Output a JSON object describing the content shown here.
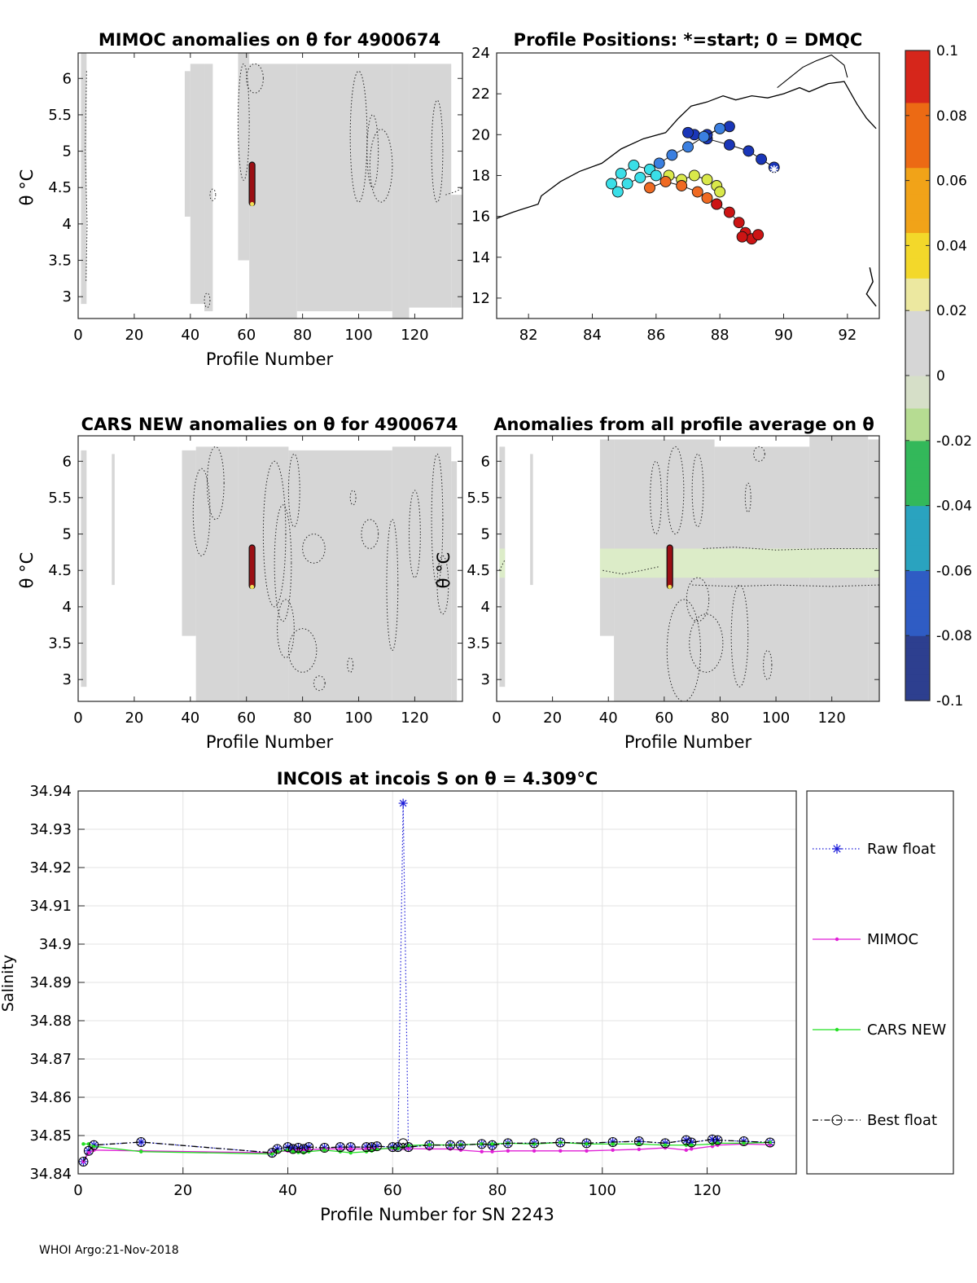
{
  "footer": "WHOI Argo:21-Nov-2018",
  "colors": {
    "panel_fill": "#d6d6d6",
    "anomaly_bar": "#9b0f14",
    "raw_float": "#1a1ad8",
    "mimoc": "#e01fd6",
    "cars": "#22e022",
    "best": "#000000",
    "coast": "#000000"
  },
  "chart_data": [
    {
      "id": "mimoc",
      "type": "heatmap",
      "title": "MIMOC anomalies on θ  for 4900674",
      "xlabel": "Profile Number",
      "ylabel": "θ °C",
      "xlim": [
        0,
        137
      ],
      "ylim": [
        2.7,
        6.35
      ],
      "xticks": [
        0,
        20,
        40,
        60,
        80,
        100,
        120
      ],
      "yticks": [
        3,
        3.5,
        4,
        4.5,
        5,
        5.5,
        6
      ],
      "data_columns": [
        [
          1,
          3,
          2.9,
          6.35
        ],
        [
          38,
          40,
          4.1,
          6.1
        ],
        [
          40,
          45,
          2.9,
          6.2
        ],
        [
          45,
          48,
          2.8,
          6.2
        ],
        [
          57,
          61,
          3.5,
          6.35
        ],
        [
          61,
          78,
          2.7,
          6.2
        ],
        [
          78,
          112,
          2.8,
          6.2
        ],
        [
          112,
          118,
          2.7,
          6.2
        ],
        [
          118,
          133,
          2.85,
          6.2
        ],
        [
          133,
          137,
          2.85,
          4.4
        ]
      ],
      "anomaly_bar": {
        "x": 62,
        "theta": [
          4.25,
          4.85
        ]
      }
    },
    {
      "id": "positions",
      "type": "scatter",
      "title": "Profile Positions: *=start; 0 = DMQC",
      "xlim": [
        81,
        93
      ],
      "ylim": [
        11,
        24
      ],
      "xticks": [
        82,
        84,
        86,
        88,
        90,
        92
      ],
      "yticks": [
        12,
        14,
        16,
        18,
        20,
        22,
        24
      ],
      "tracks": [
        {
          "name": "dark-blue",
          "color": "#1a36b8",
          "points": [
            [
              89.7,
              18.4
            ],
            [
              89.3,
              18.8
            ],
            [
              88.9,
              19.2
            ],
            [
              88.3,
              19.5
            ],
            [
              87.6,
              19.8
            ],
            [
              87.2,
              20.0
            ],
            [
              87.0,
              20.1
            ],
            [
              87.6,
              20.0
            ],
            [
              88.0,
              20.3
            ],
            [
              88.3,
              20.4
            ]
          ]
        },
        {
          "name": "blue",
          "color": "#3a7fe0",
          "points": [
            [
              88.0,
              20.3
            ],
            [
              87.5,
              19.9
            ],
            [
              87.0,
              19.4
            ],
            [
              86.5,
              19.0
            ],
            [
              86.1,
              18.6
            ],
            [
              85.8,
              18.3
            ]
          ]
        },
        {
          "name": "cyan",
          "color": "#3adfe8",
          "points": [
            [
              85.8,
              18.3
            ],
            [
              85.3,
              18.5
            ],
            [
              84.9,
              18.1
            ],
            [
              84.6,
              17.6
            ],
            [
              84.8,
              17.2
            ],
            [
              85.1,
              17.6
            ],
            [
              85.5,
              17.9
            ],
            [
              86.0,
              18.0
            ]
          ]
        },
        {
          "name": "yellow-green",
          "color": "#d9e84a",
          "points": [
            [
              86.4,
              18.0
            ],
            [
              86.8,
              17.8
            ],
            [
              87.2,
              18.0
            ],
            [
              87.6,
              17.8
            ],
            [
              87.9,
              17.5
            ],
            [
              88.0,
              17.2
            ]
          ]
        },
        {
          "name": "orange",
          "color": "#ef6a22",
          "points": [
            [
              85.8,
              17.4
            ],
            [
              86.3,
              17.7
            ],
            [
              86.8,
              17.5
            ],
            [
              87.3,
              17.2
            ],
            [
              87.6,
              16.9
            ],
            [
              87.9,
              16.6
            ]
          ]
        },
        {
          "name": "red",
          "color": "#cc1414",
          "points": [
            [
              87.9,
              16.6
            ],
            [
              88.3,
              16.2
            ],
            [
              88.6,
              15.7
            ],
            [
              88.8,
              15.2
            ],
            [
              89.0,
              14.9
            ],
            [
              89.2,
              15.1
            ],
            [
              88.7,
              15.0
            ]
          ]
        }
      ],
      "start_marker": [
        89.7,
        18.3
      ]
    },
    {
      "id": "cars",
      "type": "heatmap",
      "title": "CARS NEW anomalies on θ for 4900674",
      "xlabel": "Profile Number",
      "ylabel": "θ °C",
      "xlim": [
        0,
        137
      ],
      "ylim": [
        2.7,
        6.35
      ],
      "xticks": [
        0,
        20,
        40,
        60,
        80,
        100,
        120
      ],
      "yticks": [
        3,
        3.5,
        4,
        4.5,
        5,
        5.5,
        6
      ],
      "data_columns": [
        [
          1,
          3,
          2.9,
          6.15
        ],
        [
          12,
          13,
          4.3,
          6.1
        ],
        [
          37,
          42,
          3.6,
          6.15
        ],
        [
          42,
          57,
          2.7,
          6.2
        ],
        [
          57,
          75,
          2.7,
          6.2
        ],
        [
          75,
          112,
          2.7,
          6.15
        ],
        [
          112,
          133,
          2.7,
          6.2
        ],
        [
          133,
          135,
          2.7,
          6.0
        ]
      ],
      "anomaly_bar": {
        "x": 62,
        "theta": [
          4.25,
          4.85
        ]
      }
    },
    {
      "id": "allavg",
      "type": "heatmap",
      "title": "Anomalies from all profile average on θ",
      "xlabel": "Profile Number",
      "ylabel": "θ °C",
      "xlim": [
        0,
        137
      ],
      "ylim": [
        2.7,
        6.35
      ],
      "xticks": [
        0,
        20,
        40,
        60,
        80,
        100,
        120
      ],
      "yticks": [
        3,
        3.5,
        4,
        4.5,
        5,
        5.5,
        6
      ],
      "data_columns": [
        [
          1,
          3,
          2.9,
          6.2
        ],
        [
          12,
          13,
          4.3,
          6.1
        ],
        [
          37,
          42,
          3.6,
          6.3
        ],
        [
          42,
          78,
          2.7,
          6.3
        ],
        [
          78,
          112,
          2.7,
          6.2
        ],
        [
          112,
          133,
          2.7,
          6.35
        ],
        [
          133,
          137,
          2.7,
          6.3
        ]
      ],
      "band": {
        "theta": [
          4.4,
          4.8
        ],
        "color": "#dcecc8"
      },
      "anomaly_bar": {
        "x": 62,
        "theta": [
          4.25,
          4.85
        ]
      }
    },
    {
      "id": "colorbar",
      "type": "colorbar",
      "range": [
        -0.1,
        0.1
      ],
      "ticks": [
        "0.1",
        "0.08",
        "0.06",
        "0.04",
        "0.02",
        "0",
        "-0.02",
        "-0.04",
        "-0.06",
        "-0.08",
        "-0.1"
      ],
      "tick_values": [
        0.1,
        0.08,
        0.06,
        0.04,
        0.02,
        0,
        -0.02,
        -0.04,
        -0.06,
        -0.08,
        -0.1
      ]
    },
    {
      "id": "salinity",
      "type": "line",
      "title": "INCOIS at incois S on θ = 4.309°C",
      "xlabel": "Profile Number for SN 2243",
      "ylabel": "Salinity",
      "xlim": [
        0,
        137
      ],
      "ylim": [
        34.84,
        34.94
      ],
      "xticks": [
        0,
        20,
        40,
        60,
        80,
        100,
        120
      ],
      "yticks": [
        "34.84",
        "34.85",
        "34.86",
        "34.87",
        "34.88",
        "34.89",
        "34.9",
        "34.91",
        "34.92",
        "34.93",
        "34.94"
      ],
      "ytick_values": [
        34.84,
        34.85,
        34.86,
        34.87,
        34.88,
        34.89,
        34.9,
        34.91,
        34.92,
        34.93,
        34.94
      ],
      "x": [
        1,
        2,
        3,
        12,
        37,
        38,
        40,
        41,
        42,
        43,
        44,
        47,
        50,
        52,
        55,
        56,
        57,
        60,
        61,
        62,
        63,
        67,
        71,
        73,
        77,
        79,
        82,
        87,
        92,
        97,
        102,
        107,
        112,
        116,
        117,
        121,
        122,
        127,
        132
      ],
      "series": [
        {
          "name": "Raw float",
          "style": "dotted-star",
          "values": [
            34.8432,
            34.846,
            34.8475,
            34.8483,
            34.8455,
            34.8465,
            34.847,
            34.8465,
            34.8468,
            34.8465,
            34.847,
            34.8468,
            34.847,
            34.847,
            34.847,
            34.847,
            34.8472,
            34.847,
            34.847,
            34.9368,
            34.847,
            34.8475,
            34.8475,
            34.8475,
            34.8478,
            34.8475,
            34.848,
            34.848,
            34.8482,
            34.848,
            34.8483,
            34.8485,
            34.848,
            34.8488,
            34.8482,
            34.849,
            34.8488,
            34.8485,
            34.8482
          ]
        },
        {
          "name": "MIMOC",
          "style": "solid-dot",
          "values": [
            34.8432,
            34.8455,
            34.8462,
            34.846,
            34.8455,
            34.8458,
            34.846,
            34.8462,
            34.8463,
            34.8462,
            34.8463,
            34.8465,
            34.8465,
            34.8465,
            34.8465,
            34.8466,
            34.8466,
            34.8466,
            34.8466,
            34.8467,
            34.8466,
            34.8465,
            34.8465,
            34.8462,
            34.8458,
            34.8458,
            34.846,
            34.846,
            34.846,
            34.846,
            34.8462,
            34.8464,
            34.8468,
            34.8462,
            34.8465,
            34.8472,
            34.8475,
            34.8478,
            34.8476
          ]
        },
        {
          "name": "CARS NEW",
          "style": "solid-dot",
          "values": [
            34.8478,
            34.8478,
            34.8472,
            34.8458,
            34.8452,
            34.8458,
            34.8462,
            34.8458,
            34.8456,
            34.8455,
            34.8458,
            34.8462,
            34.8458,
            34.8455,
            34.8458,
            34.846,
            34.8464,
            34.8468,
            34.8466,
            34.847,
            34.8474,
            34.8476,
            34.8475,
            34.8476,
            34.8478,
            34.8478,
            34.848,
            34.8478,
            34.8482,
            34.8478,
            34.8478,
            34.8478,
            34.8475,
            34.8475,
            34.8475,
            34.8478,
            34.848,
            34.848,
            34.8482
          ]
        },
        {
          "name": "Best float",
          "style": "dashdot-circle",
          "values": [
            34.8432,
            34.846,
            34.8475,
            34.8483,
            34.8455,
            34.8465,
            34.847,
            34.8465,
            34.8468,
            34.8465,
            34.847,
            34.8468,
            34.847,
            34.847,
            34.847,
            34.847,
            34.8472,
            34.847,
            34.847,
            34.848,
            34.847,
            34.8475,
            34.8475,
            34.8475,
            34.8478,
            34.8475,
            34.848,
            34.848,
            34.8482,
            34.848,
            34.8483,
            34.8485,
            34.848,
            34.8488,
            34.8482,
            34.849,
            34.8488,
            34.8485,
            34.8482
          ]
        }
      ],
      "legend": [
        "Raw float",
        "MIMOC",
        "CARS NEW",
        "Best float"
      ]
    }
  ]
}
